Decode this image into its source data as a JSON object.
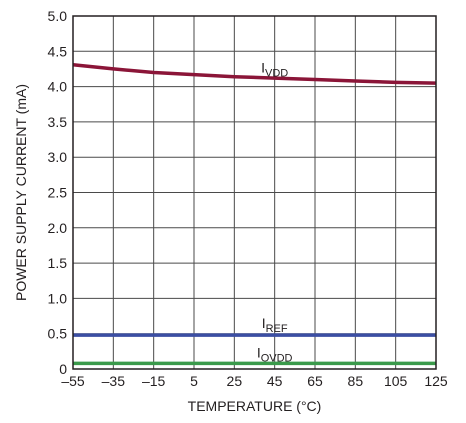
{
  "chart_data": {
    "type": "line",
    "xlabel": "TEMPERATURE (°C)",
    "ylabel": "POWER SUPPLY CURRENT (mA)",
    "xlim": [
      -55,
      125
    ],
    "ylim": [
      0,
      5.0
    ],
    "grid": true,
    "x_ticks": [
      -55,
      -35,
      -15,
      5,
      25,
      45,
      65,
      85,
      105,
      125
    ],
    "x_tick_labels": [
      "–55",
      "–35",
      "–15",
      "5",
      "25",
      "45",
      "65",
      "85",
      "105",
      "125"
    ],
    "y_ticks": [
      0,
      0.5,
      1.0,
      1.5,
      2.0,
      2.5,
      3.0,
      3.5,
      4.0,
      4.5,
      5.0
    ],
    "y_tick_labels": [
      "0",
      "0.5",
      "1.0",
      "1.5",
      "2.0",
      "2.5",
      "3.0",
      "3.5",
      "4.0",
      "4.5",
      "5.0"
    ],
    "series": [
      {
        "label_main": "I",
        "label_sub": "VDD",
        "color": "#8b1538",
        "label_at": [
          45,
          4.2
        ],
        "x": [
          -55,
          -35,
          -15,
          5,
          25,
          45,
          65,
          85,
          105,
          125
        ],
        "y": [
          4.31,
          4.25,
          4.2,
          4.17,
          4.14,
          4.12,
          4.1,
          4.08,
          4.06,
          4.05
        ]
      },
      {
        "label_main": "I",
        "label_sub": "REF",
        "color": "#3b4ea3",
        "label_at": [
          45,
          0.58
        ],
        "x": [
          -55,
          125
        ],
        "y": [
          0.48,
          0.48
        ]
      },
      {
        "label_main": "I",
        "label_sub": "OVDD",
        "color": "#3a9a4b",
        "label_at": [
          45,
          0.16
        ],
        "x": [
          -55,
          125
        ],
        "y": [
          0.08,
          0.08
        ]
      }
    ]
  }
}
